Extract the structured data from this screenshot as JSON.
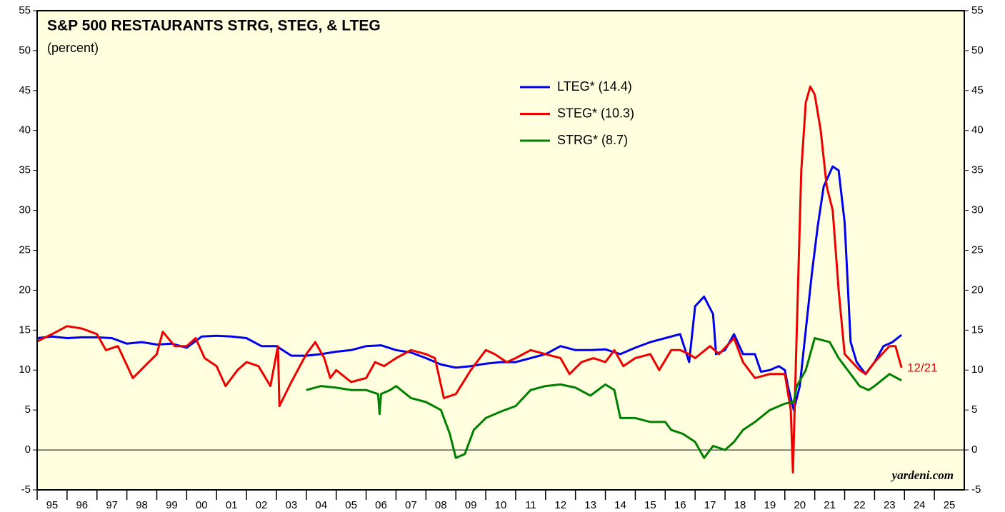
{
  "chart_data": {
    "type": "line",
    "title": "S&P 500 RESTAURANTS STRG, STEG, & LTEG",
    "subtitle": "(percent)",
    "annotations": [
      "12/21",
      "yardeni.com"
    ],
    "xlim": [
      1995,
      2026
    ],
    "xticks": [
      {
        "value": 1995,
        "label": "95"
      },
      {
        "value": 1996,
        "label": "96"
      },
      {
        "value": 1997,
        "label": "97"
      },
      {
        "value": 1998,
        "label": "98"
      },
      {
        "value": 1999,
        "label": "99"
      },
      {
        "value": 2000,
        "label": "00"
      },
      {
        "value": 2001,
        "label": "01"
      },
      {
        "value": 2002,
        "label": "02"
      },
      {
        "value": 2003,
        "label": "03"
      },
      {
        "value": 2004,
        "label": "04"
      },
      {
        "value": 2005,
        "label": "05"
      },
      {
        "value": 2006,
        "label": "06"
      },
      {
        "value": 2007,
        "label": "07"
      },
      {
        "value": 2008,
        "label": "08"
      },
      {
        "value": 2009,
        "label": "09"
      },
      {
        "value": 2010,
        "label": "10"
      },
      {
        "value": 2011,
        "label": "11"
      },
      {
        "value": 2012,
        "label": "12"
      },
      {
        "value": 2013,
        "label": "13"
      },
      {
        "value": 2014,
        "label": "14"
      },
      {
        "value": 2015,
        "label": "15"
      },
      {
        "value": 2016,
        "label": "16"
      },
      {
        "value": 2017,
        "label": "17"
      },
      {
        "value": 2018,
        "label": "18"
      },
      {
        "value": 2019,
        "label": "19"
      },
      {
        "value": 2020,
        "label": "20"
      },
      {
        "value": 2021,
        "label": "21"
      },
      {
        "value": 2022,
        "label": "22"
      },
      {
        "value": 2023,
        "label": "23"
      },
      {
        "value": 2024,
        "label": "24"
      },
      {
        "value": 2025,
        "label": "25"
      }
    ],
    "ylim": [
      -5,
      55
    ],
    "yticks": [
      -5,
      0,
      5,
      10,
      15,
      20,
      25,
      30,
      35,
      40,
      45,
      50,
      55
    ],
    "series": [
      {
        "name": "LTEG* (14.4)",
        "color": "#0000ee",
        "x": [
          1995,
          1995.5,
          1996,
          1996.5,
          1997,
          1997.5,
          1998,
          1998.5,
          1999,
          1999.5,
          2000,
          2000.5,
          2001,
          2001.5,
          2002,
          2002.5,
          2003,
          2003.5,
          2004,
          2004.5,
          2005,
          2005.5,
          2006,
          2006.5,
          2007,
          2007.5,
          2008,
          2008.5,
          2009,
          2009.5,
          2010,
          2010.5,
          2011,
          2011.5,
          2012,
          2012.5,
          2013,
          2013.5,
          2014,
          2014.5,
          2015,
          2015.5,
          2016,
          2016.5,
          2016.8,
          2017,
          2017.3,
          2017.6,
          2017.7,
          2018,
          2018.3,
          2018.6,
          2019,
          2019.2,
          2019.5,
          2019.8,
          2020,
          2020.1,
          2020.3,
          2020.5,
          2020.7,
          2020.9,
          2021.1,
          2021.3,
          2021.6,
          2021.8,
          2022,
          2022.2,
          2022.4,
          2022.7,
          2023,
          2023.3,
          2023.6,
          2023.9
        ],
        "values": [
          14,
          14.2,
          14,
          14.1,
          14.1,
          14,
          13.3,
          13.5,
          13.2,
          13.3,
          12.8,
          14.2,
          14.3,
          14.2,
          14,
          13,
          13,
          11.8,
          11.8,
          12,
          12.3,
          12.5,
          13,
          13.1,
          12.5,
          12.2,
          11.5,
          10.7,
          10.3,
          10.5,
          10.8,
          11,
          11,
          11.5,
          12,
          13,
          12.5,
          12.5,
          12.6,
          12,
          12.8,
          13.5,
          14,
          14.5,
          11,
          18,
          19.2,
          17,
          12,
          12.5,
          14.5,
          12,
          12,
          9.8,
          10,
          10.5,
          10,
          8,
          5,
          8,
          15,
          22,
          28,
          33,
          35.5,
          35,
          28.5,
          13.5,
          11,
          9.5,
          11,
          13,
          13.5,
          14.4
        ]
      },
      {
        "name": "STEG* (10.3)",
        "color": "#ee0000",
        "x": [
          1995,
          1995.5,
          1996,
          1996.5,
          1997,
          1997.3,
          1997.7,
          1998.2,
          1998.6,
          1999,
          1999.2,
          1999.6,
          2000,
          2000.3,
          2000.6,
          2001,
          2001.3,
          2001.7,
          2002,
          2002.4,
          2002.8,
          2003.05,
          2003.1,
          2003.5,
          2004,
          2004.3,
          2004.6,
          2004.8,
          2005,
          2005.5,
          2006,
          2006.3,
          2006.6,
          2007,
          2007.5,
          2008,
          2008.3,
          2008.6,
          2009,
          2009.5,
          2010,
          2010.3,
          2010.7,
          2011,
          2011.5,
          2012,
          2012.5,
          2012.8,
          2013.2,
          2013.6,
          2014,
          2014.3,
          2014.6,
          2015,
          2015.5,
          2015.8,
          2016.2,
          2016.5,
          2016.8,
          2017,
          2017.5,
          2017.8,
          2018.3,
          2018.6,
          2019,
          2019.5,
          2020,
          2020.2,
          2020.27,
          2020.4,
          2020.55,
          2020.7,
          2020.85,
          2021,
          2021.2,
          2021.4,
          2021.6,
          2021.8,
          2022,
          2022.5,
          2022.7,
          2023,
          2023.5,
          2023.7,
          2023.9
        ],
        "values": [
          13.6,
          14.5,
          15.5,
          15.2,
          14.5,
          12.5,
          13,
          9,
          10.5,
          12,
          14.8,
          13,
          13,
          14,
          11.5,
          10.5,
          8,
          10,
          11,
          10.5,
          8,
          13,
          5.5,
          8.5,
          12,
          13.5,
          11.5,
          9,
          10,
          8.5,
          9,
          11,
          10.5,
          11.5,
          12.5,
          12,
          11.5,
          6.5,
          7,
          10,
          12.5,
          12,
          11,
          11.5,
          12.5,
          12,
          11.5,
          9.5,
          11,
          11.5,
          11,
          12.5,
          10.5,
          11.5,
          12,
          10,
          12.5,
          12.5,
          12,
          11.5,
          13,
          12,
          14,
          11,
          9,
          9.5,
          9.5,
          5,
          -2.8,
          15,
          35,
          43.5,
          45.5,
          44.5,
          40,
          33,
          30,
          20,
          12,
          10,
          9.5,
          11,
          13,
          13,
          10.3
        ]
      },
      {
        "name": "STRG* (8.7)",
        "color": "#008000",
        "x": [
          2004,
          2004.5,
          2005,
          2005.5,
          2006,
          2006.4,
          2006.45,
          2006.5,
          2006.8,
          2007,
          2007.5,
          2008,
          2008.5,
          2008.8,
          2009,
          2009.3,
          2009.6,
          2010,
          2010.5,
          2011,
          2011.5,
          2012,
          2012.5,
          2013,
          2013.5,
          2014,
          2014.3,
          2014.5,
          2015,
          2015.5,
          2016,
          2016.2,
          2016.6,
          2017,
          2017.3,
          2017.6,
          2018,
          2018.3,
          2018.6,
          2019,
          2019.5,
          2020,
          2020.3,
          2020.4,
          2020.7,
          2021,
          2021.5,
          2021.8,
          2022.2,
          2022.5,
          2022.8,
          2023,
          2023.5,
          2023.9
        ],
        "values": [
          7.5,
          8,
          7.8,
          7.5,
          7.5,
          7,
          4.5,
          7,
          7.5,
          8,
          6.5,
          6,
          5,
          2,
          -1,
          -0.5,
          2.5,
          4,
          4.8,
          5.5,
          7.5,
          8,
          8.2,
          7.8,
          6.8,
          8.2,
          7.5,
          4,
          4,
          3.5,
          3.5,
          2.5,
          2,
          1,
          -1,
          0.5,
          0,
          1,
          2.5,
          3.5,
          5,
          5.8,
          6,
          8,
          10,
          14,
          13.5,
          11.5,
          9.5,
          8,
          7.5,
          8,
          9.5,
          8.7
        ]
      }
    ]
  }
}
